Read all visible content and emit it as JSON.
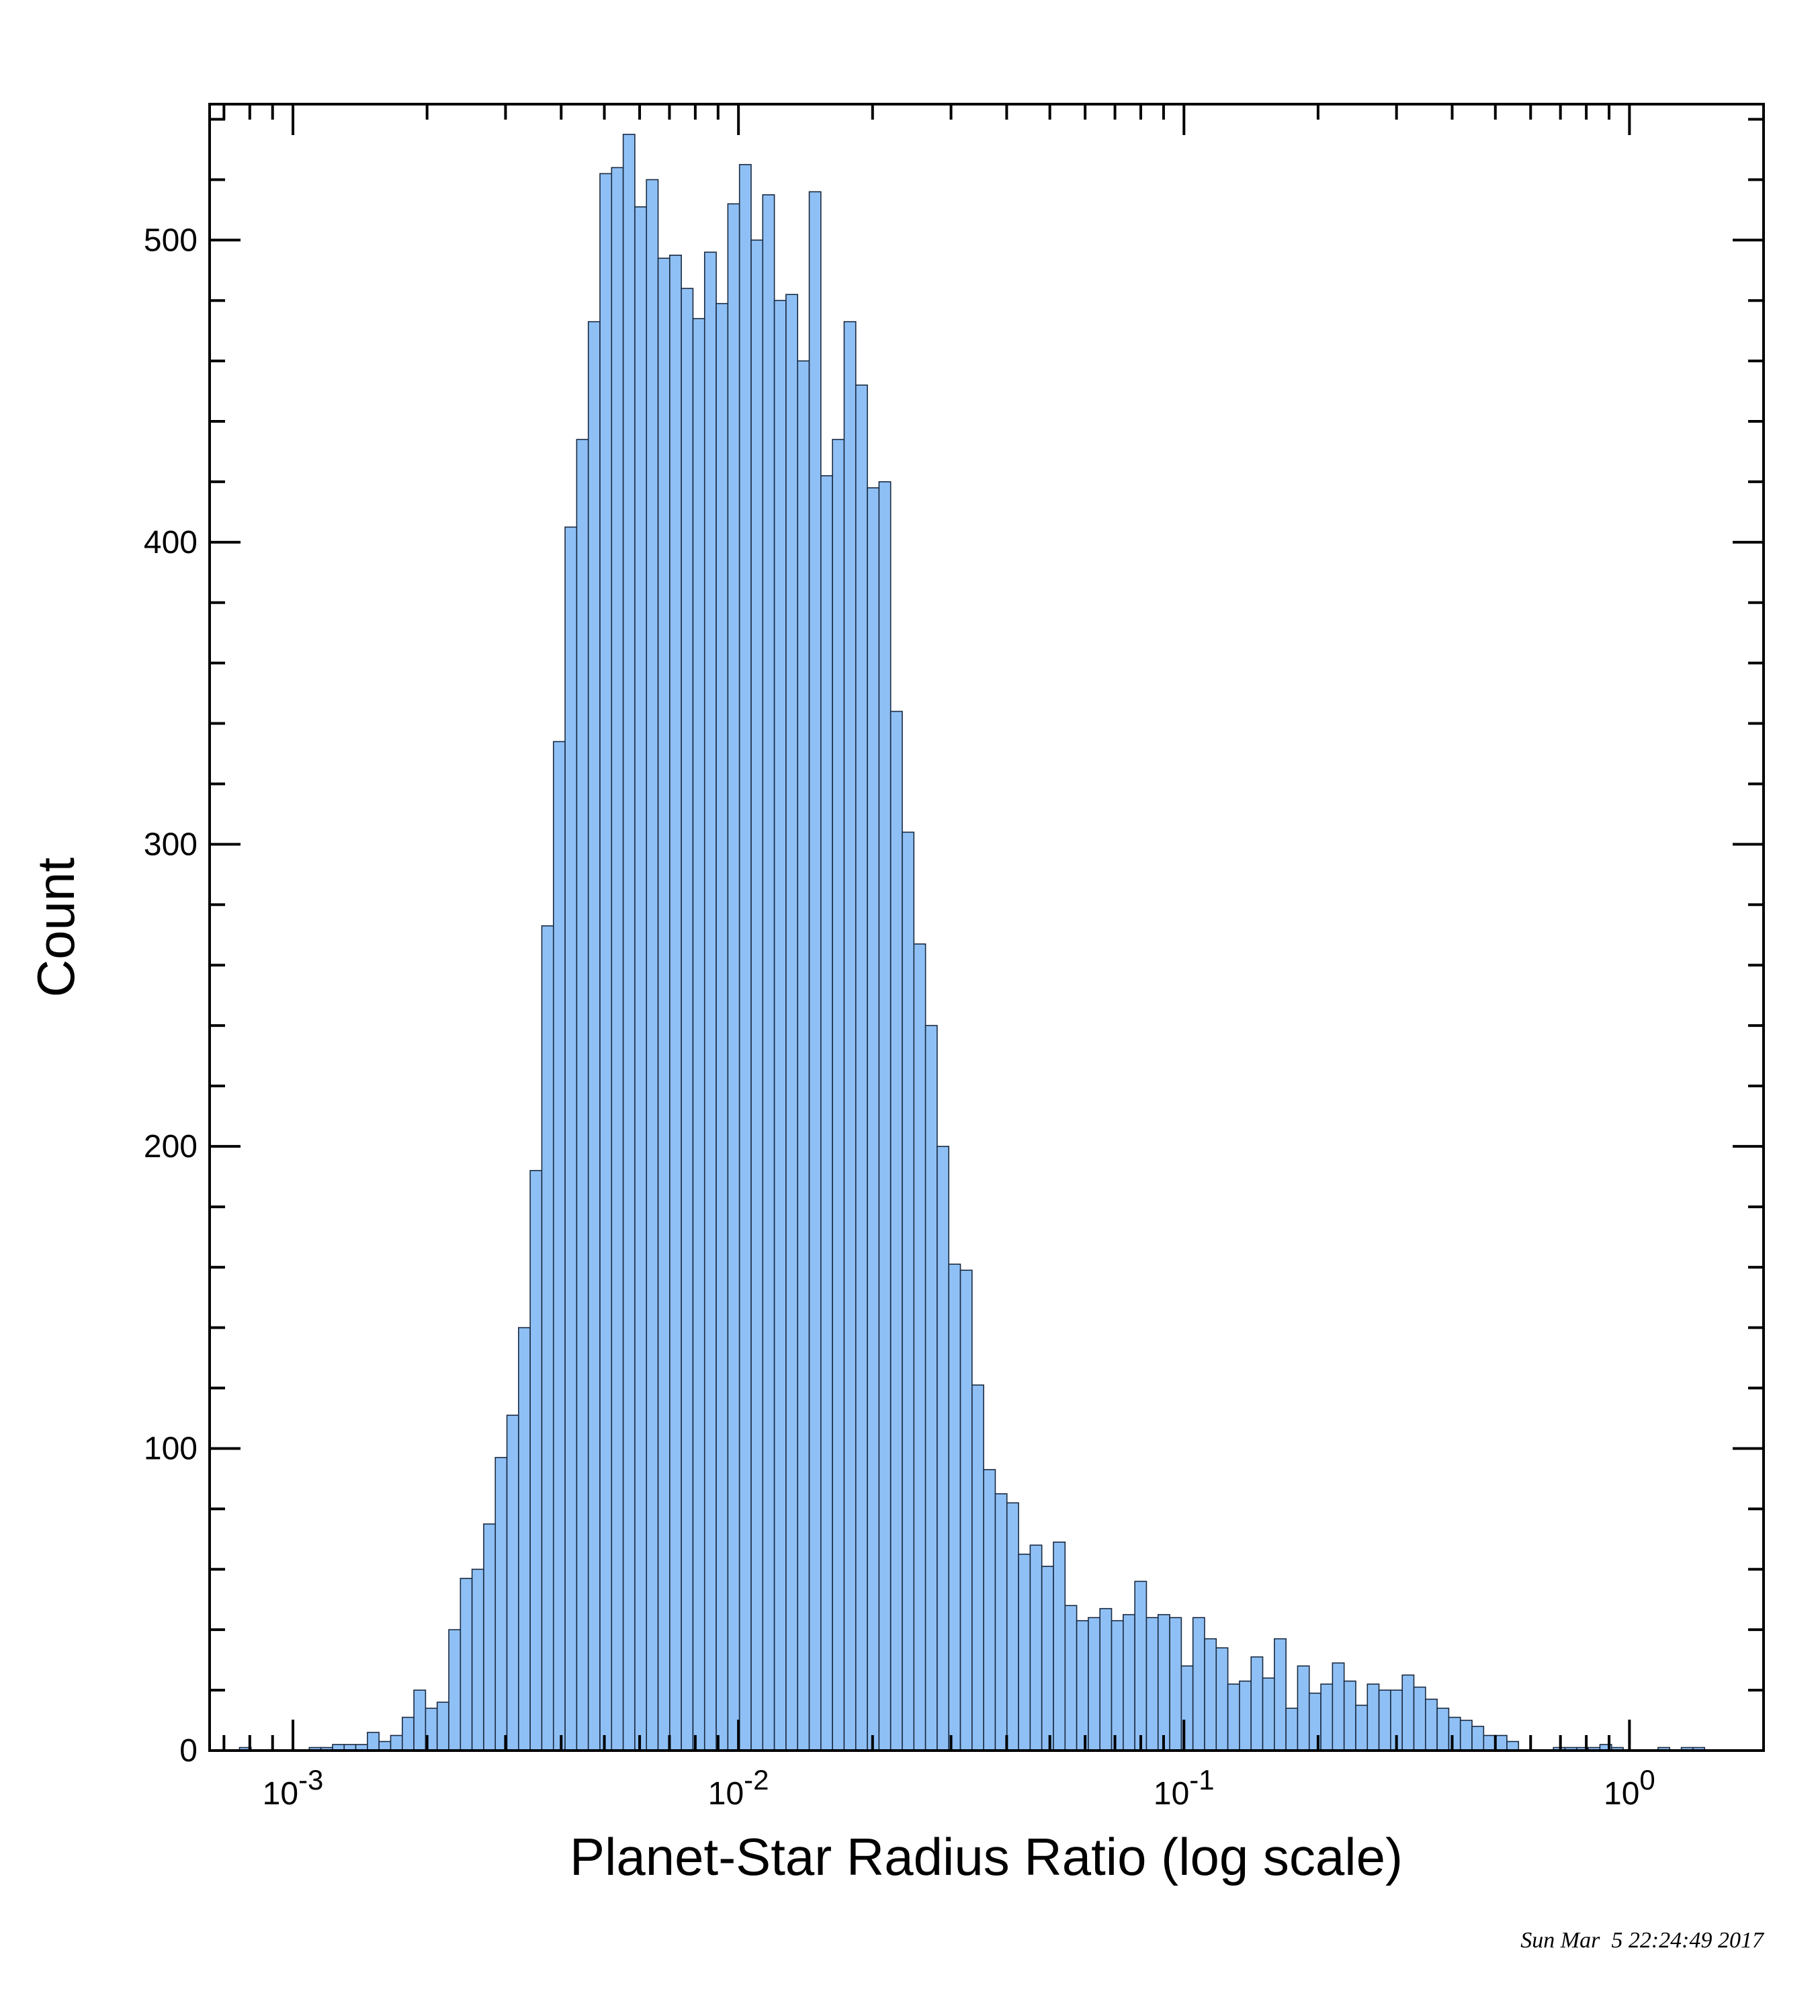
{
  "chart_data": {
    "type": "bar",
    "xlabel": "Planet-Star Radius Ratio (log scale)",
    "ylabel": "Count",
    "xscale": "log",
    "xlim": [
      0.00065,
      2.0
    ],
    "ylim": [
      0,
      545
    ],
    "grid": false,
    "x_ticks": [
      {
        "value": 0.001,
        "base": "10",
        "exp": "-3"
      },
      {
        "value": 0.01,
        "base": "10",
        "exp": "-2"
      },
      {
        "value": 0.1,
        "base": "10",
        "exp": "-1"
      },
      {
        "value": 1.0,
        "base": "10",
        "exp": "0"
      }
    ],
    "y_ticks": [
      0,
      100,
      200,
      300,
      400,
      500
    ],
    "bins": {
      "log_start": -3.12,
      "log_width": 0.0261,
      "counts": [
        1,
        0,
        0,
        0,
        0,
        0,
        1,
        1,
        2,
        2,
        2,
        6,
        3,
        5,
        11,
        20,
        14,
        16,
        40,
        57,
        60,
        75,
        97,
        111,
        140,
        192,
        273,
        334,
        405,
        434,
        473,
        522,
        524,
        535,
        511,
        520,
        494,
        495,
        484,
        474,
        496,
        479,
        512,
        525,
        500,
        515,
        480,
        482,
        460,
        516,
        422,
        434,
        473,
        452,
        418,
        420,
        344,
        304,
        267,
        240,
        200,
        161,
        159,
        121,
        93,
        85,
        82,
        65,
        68,
        61,
        69,
        48,
        43,
        44,
        47,
        43,
        45,
        56,
        44,
        45,
        44,
        28,
        44,
        37,
        34,
        22,
        23,
        31,
        24,
        37,
        14,
        28,
        19,
        22,
        29,
        23,
        15,
        22,
        20,
        20,
        25,
        21,
        17,
        14,
        11,
        10,
        8,
        5,
        5,
        3,
        0,
        0,
        0,
        1,
        1,
        1,
        1,
        2,
        1,
        0,
        0,
        0,
        1,
        0,
        1,
        1
      ],
      "fill": "#8fc0f5",
      "edge": "#1a2a40"
    }
  },
  "timestamp": "Sun Mar  5 22:24:49 2017"
}
